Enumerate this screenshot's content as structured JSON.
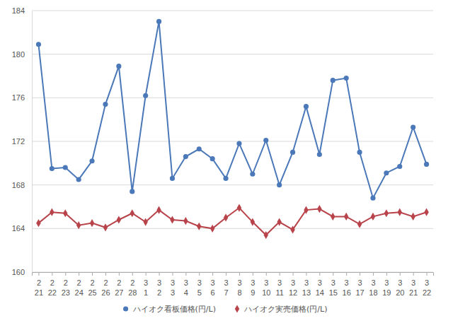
{
  "chart_data": {
    "type": "line",
    "categories": [
      "2\n21",
      "2\n22",
      "2\n23",
      "2\n24",
      "2\n25",
      "2\n26",
      "2\n27",
      "2\n28",
      "3\n1",
      "3\n2",
      "3\n3",
      "3\n4",
      "3\n5",
      "3\n6",
      "3\n7",
      "3\n8",
      "3\n9",
      "3\n10",
      "3\n11",
      "3\n12",
      "3\n13",
      "3\n14",
      "3\n15",
      "3\n16",
      "3\n17",
      "3\n18",
      "3\n19",
      "3\n20",
      "3\n21",
      "3\n22"
    ],
    "series": [
      {
        "name": "ハイオク看板価格(円/L)",
        "color": "#4a78b8",
        "marker": "circle",
        "values": [
          180.9,
          169.5,
          169.6,
          168.5,
          170.2,
          175.4,
          178.9,
          167.4,
          176.2,
          183.0,
          168.6,
          170.6,
          171.3,
          170.4,
          168.6,
          171.8,
          169.0,
          172.1,
          168.0,
          171.0,
          175.2,
          170.8,
          177.6,
          177.8,
          171.0,
          166.8,
          169.1,
          169.7,
          173.3,
          169.9
        ]
      },
      {
        "name": "ハイオク実売価格(円/L)",
        "color": "#b8434a",
        "marker": "diamond",
        "values": [
          164.5,
          165.5,
          165.4,
          164.3,
          164.5,
          164.1,
          164.8,
          165.4,
          164.6,
          165.7,
          164.8,
          164.7,
          164.2,
          164.0,
          165.0,
          165.9,
          164.6,
          163.4,
          164.6,
          163.9,
          165.7,
          165.8,
          165.1,
          165.1,
          164.4,
          165.1,
          165.4,
          165.5,
          165.1,
          165.5
        ]
      }
    ],
    "ylim": [
      160,
      184
    ],
    "yticks": [
      160,
      164,
      168,
      172,
      176,
      180,
      184
    ],
    "grid": true,
    "legend": "bottom"
  }
}
